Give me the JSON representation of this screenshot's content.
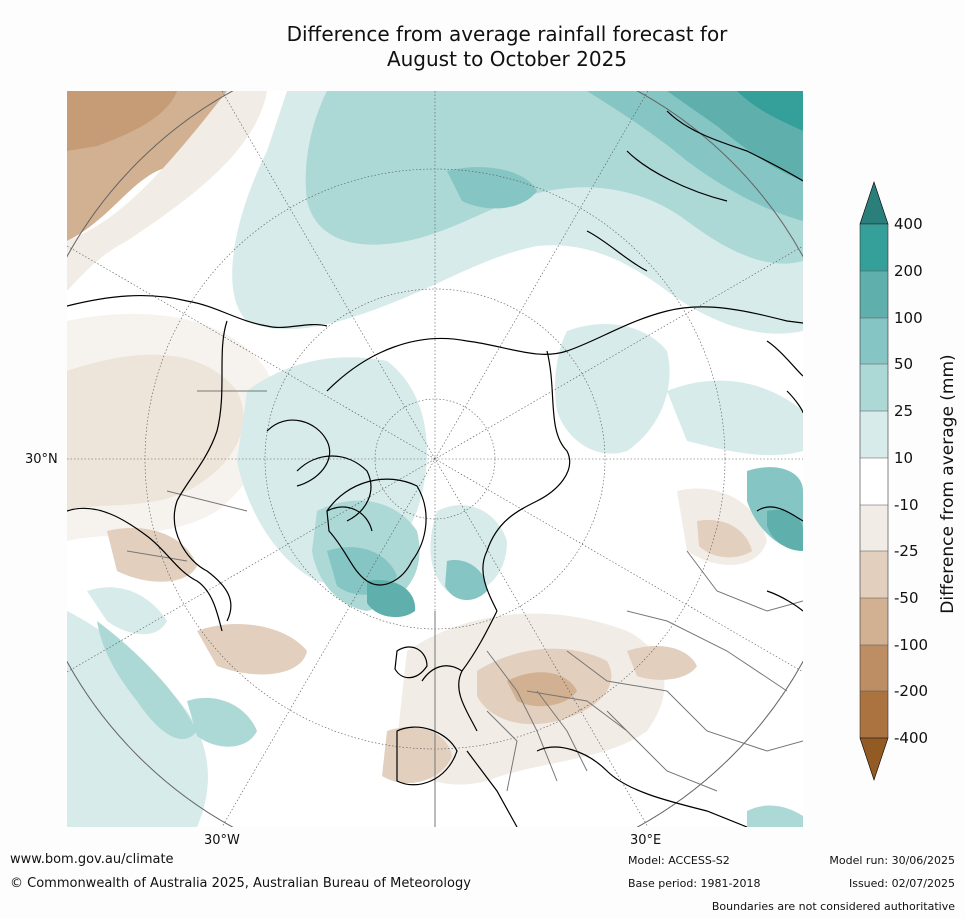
{
  "title_line1": "Difference from average rainfall forecast for",
  "title_line2": "August to October 2025",
  "map": {
    "projection": "north-polar-stereographic",
    "lat_label_left": "30°N",
    "lon_label_left": "30°W",
    "lon_label_right": "30°E",
    "coastline_color": "#000000",
    "border_color": "#777777"
  },
  "colorbar": {
    "title": "Difference from average (mm)",
    "ticks": [
      "400",
      "200",
      "100",
      "50",
      "25",
      "10",
      "-10",
      "-25",
      "-50",
      "-100",
      "-200",
      "-400"
    ],
    "colors": {
      "above_400": "#2b7f7a",
      "200_400": "#35a09a",
      "100_200": "#5fb0ad",
      "50_100": "#85c5c3",
      "25_50": "#acd8d6",
      "10_25": "#d6ebea",
      "neutral": "#ffffff",
      "minus10_minus25": "#f2ece6",
      "minus25_minus50": "#e2cfbe",
      "minus50_minus100": "#d1b191",
      "minus100_minus200": "#bd8e63",
      "minus200_minus400": "#ab733f",
      "below_minus400": "#945a23"
    }
  },
  "footer": {
    "website": "www.bom.gov.au/climate",
    "copyright": "© Commonwealth of Australia 2025, Australian Bureau of Meteorology",
    "model": "Model: ACCESS-S2",
    "base_period": "Base period: 1981-2018",
    "model_run": "Model run: 30/06/2025",
    "issued": "Issued: 02/07/2025",
    "disclaimer": "Boundaries are not considered authoritative"
  }
}
